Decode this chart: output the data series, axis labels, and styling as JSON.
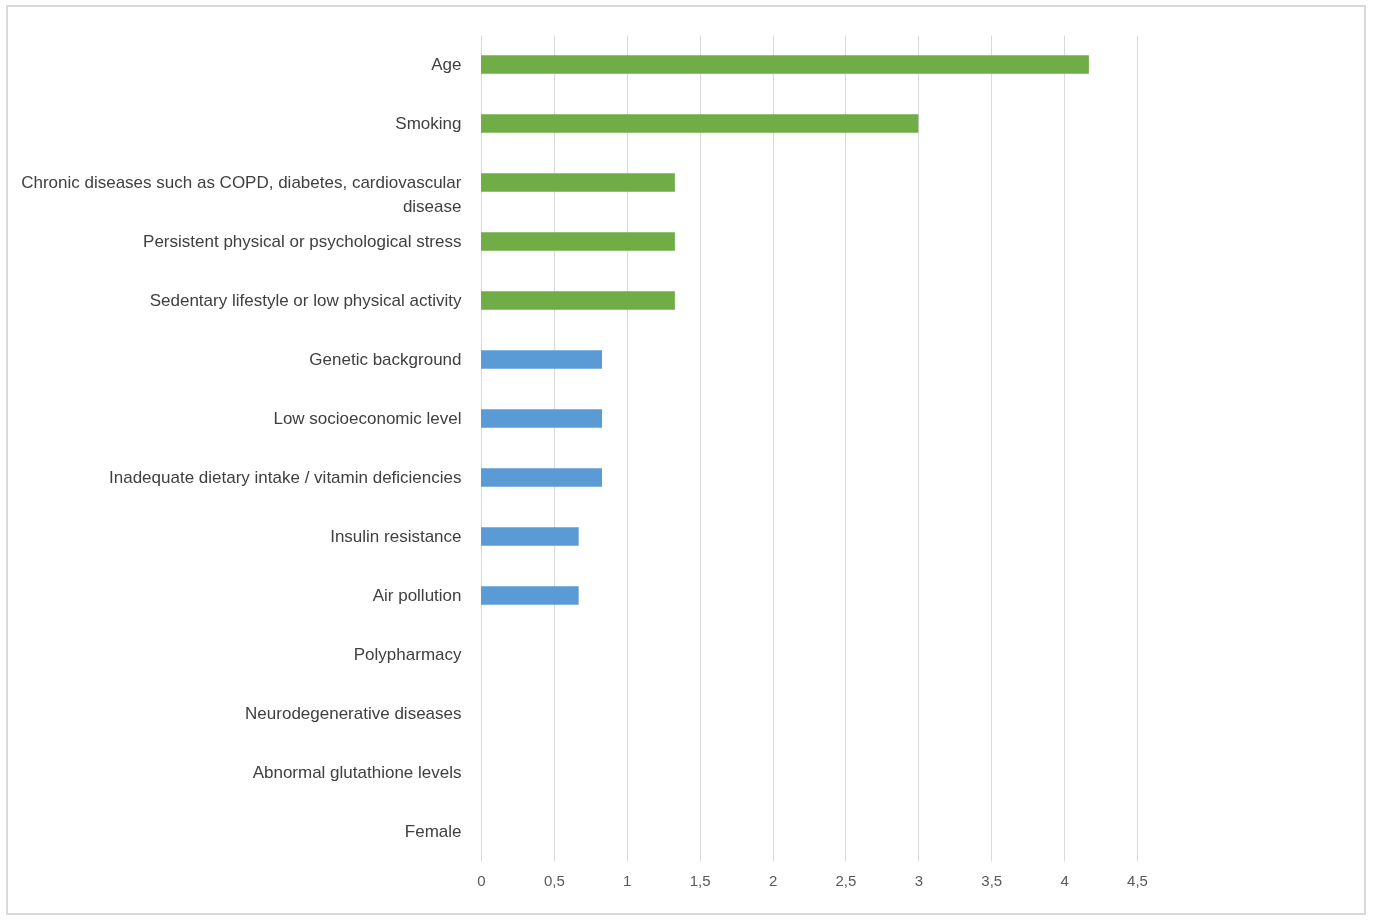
{
  "chart_data": {
    "type": "bar",
    "orientation": "horizontal",
    "categories": [
      "Age",
      "Smoking",
      "Chronic diseases such as COPD, diabetes, cardiovascular disease",
      "Persistent physical or psychological stress",
      "Sedentary lifestyle or low physical activity",
      "Genetic background",
      "Low socioeconomic level",
      "Inadequate dietary intake / vitamin deficiencies",
      "Insulin resistance",
      "Air pollution",
      "Polypharmacy",
      "Neurodegenerative diseases",
      "Abnormal glutathione levels",
      "Female"
    ],
    "values": [
      4.17,
      3.0,
      1.33,
      1.33,
      1.33,
      0.83,
      0.83,
      0.83,
      0.67,
      0.67,
      0,
      0,
      0,
      0
    ],
    "colors": [
      "#70ad47",
      "#70ad47",
      "#70ad47",
      "#70ad47",
      "#70ad47",
      "#5b9bd5",
      "#5b9bd5",
      "#5b9bd5",
      "#5b9bd5",
      "#5b9bd5",
      "#5b9bd5",
      "#5b9bd5",
      "#5b9bd5",
      "#5b9bd5"
    ],
    "xlim": [
      0,
      4.5
    ],
    "xticks": [
      0,
      {
        "value": 0.5,
        "label": "0,5"
      },
      1,
      {
        "value": 1.5,
        "label": "1,5"
      },
      2,
      {
        "value": 2.5,
        "label": "2,5"
      },
      3,
      {
        "value": 3.5,
        "label": "3,5"
      },
      4,
      {
        "value": 4.5,
        "label": "4,5"
      }
    ],
    "grid": "x"
  }
}
